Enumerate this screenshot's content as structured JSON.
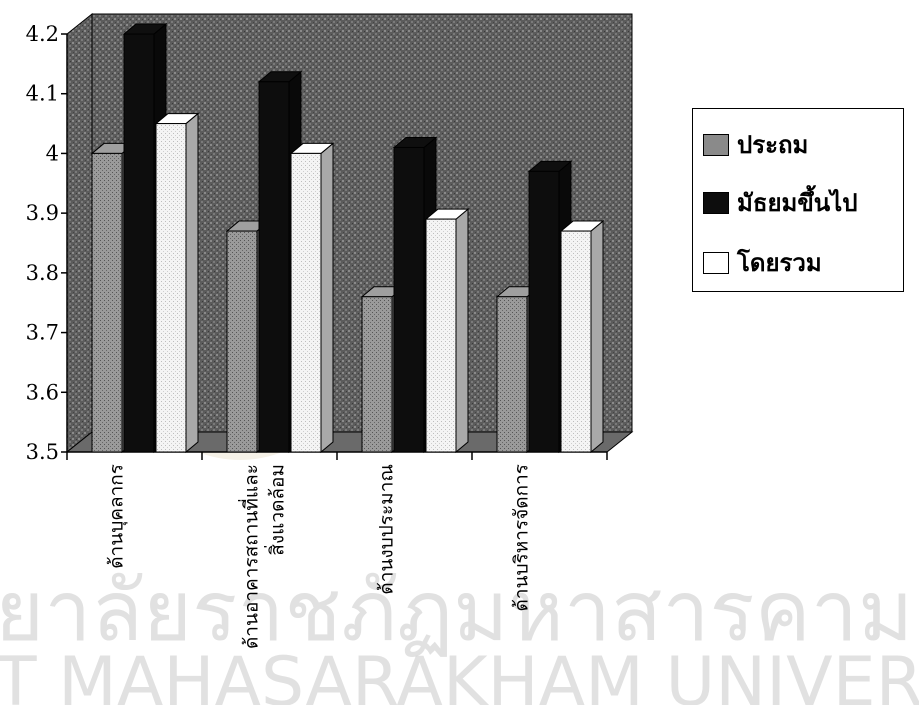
{
  "chart_data": {
    "type": "bar",
    "categories": [
      "ด้านบุคลากร",
      "ด้านอาคารสถานที่และสิ่งแวดล้อม",
      "ด้านงบประมาณ",
      "ด้านบริหารจัดการ"
    ],
    "category_lines": [
      [
        "ด้านบุคลากร"
      ],
      [
        "ด้านอาคารสถานที่และ",
        "สิ่งแวดล้อม"
      ],
      [
        "ด้านงบประมาณ"
      ],
      [
        "ด้านบริหารจัดการ"
      ]
    ],
    "series": [
      {
        "name": "ประถม",
        "values": [
          4.0,
          3.87,
          3.76,
          3.76
        ],
        "color": "#8a8a8a"
      },
      {
        "name": "มัธยมขึ้นไป",
        "values": [
          4.2,
          4.12,
          4.01,
          3.97
        ],
        "color": "#0d0d0d"
      },
      {
        "name": "โดยรวม",
        "values": [
          4.05,
          4.0,
          3.89,
          3.87
        ],
        "color": "#f2f2f2"
      }
    ],
    "ylim": [
      3.5,
      4.2
    ],
    "yticks": [
      "3.5",
      "3.6",
      "3.7",
      "3.8",
      "3.9",
      "4",
      "4.1",
      "4.2"
    ],
    "grid": false,
    "legend_position": "right"
  },
  "watermark": {
    "thai": "ยาลัยราชภัฏมหาสารคาม",
    "english": "T MAHASARAKHAM UNIVERSITY"
  }
}
